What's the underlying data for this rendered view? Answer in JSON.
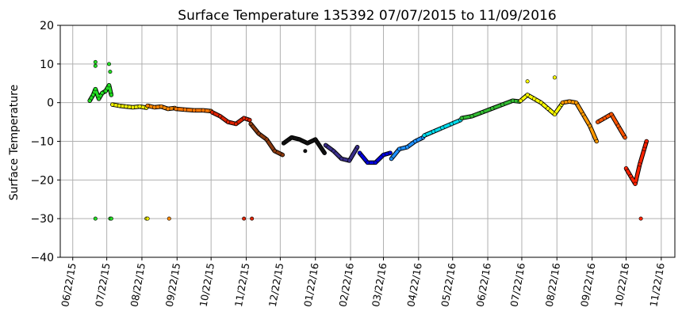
{
  "chart_data": {
    "type": "scatter",
    "title": "Surface Temperature 135392  07/07/2015 to 11/09/2016",
    "xlabel": "",
    "ylabel": "Surface Temperature",
    "ylim": [
      -40,
      20
    ],
    "yticks": [
      20,
      10,
      0,
      -10,
      -20,
      -30,
      -40
    ],
    "xlim": [
      "2015-06-11",
      "2016-12-04"
    ],
    "xticks": [
      "06/22/15",
      "07/22/15",
      "08/22/15",
      "09/22/15",
      "10/22/15",
      "11/22/15",
      "12/22/15",
      "01/22/16",
      "02/22/16",
      "03/22/16",
      "04/22/16",
      "05/22/16",
      "06/22/16",
      "07/22/16",
      "08/22/16",
      "09/22/16",
      "10/22/16",
      "11/22/16"
    ],
    "xtick_dates": [
      "2015-06-22",
      "2015-07-22",
      "2015-08-22",
      "2015-09-22",
      "2015-10-22",
      "2015-11-22",
      "2015-12-22",
      "2016-01-22",
      "2016-02-22",
      "2016-03-22",
      "2016-04-22",
      "2016-05-22",
      "2016-06-22",
      "2016-07-22",
      "2016-08-22",
      "2016-09-22",
      "2016-10-22",
      "2016-11-22"
    ],
    "grid": true,
    "series": [
      {
        "color": "#22dd22",
        "x": [
          "2015-07-07",
          "2015-07-10",
          "2015-07-12",
          "2015-07-15",
          "2015-07-18",
          "2015-07-21",
          "2015-07-24",
          "2015-07-26"
        ],
        "y": [
          0.5,
          2.0,
          3.5,
          1.0,
          2.5,
          3.0,
          4.5,
          2.0
        ]
      },
      {
        "color": "#eeee00",
        "x": [
          "2015-07-27",
          "2015-08-02",
          "2015-08-08",
          "2015-08-14",
          "2015-08-20",
          "2015-08-26"
        ],
        "y": [
          -0.5,
          -0.8,
          -1.0,
          -1.2,
          -1.0,
          -1.3
        ]
      },
      {
        "color": "#ff8800",
        "x": [
          "2015-08-27",
          "2015-09-02",
          "2015-09-08",
          "2015-09-14",
          "2015-09-20"
        ],
        "y": [
          -0.8,
          -1.2,
          -1.0,
          -1.6,
          -1.4
        ]
      },
      {
        "color": "#ff7700",
        "x": [
          "2015-09-21",
          "2015-09-29",
          "2015-10-07",
          "2015-10-15",
          "2015-10-22"
        ],
        "y": [
          -1.6,
          -1.8,
          -2.0,
          -2.0,
          -2.2
        ]
      },
      {
        "color": "#dd2200",
        "x": [
          "2015-10-23",
          "2015-10-30",
          "2015-11-06",
          "2015-11-13",
          "2015-11-20",
          "2015-11-25"
        ],
        "y": [
          -2.5,
          -3.5,
          -5.0,
          -5.5,
          -4.0,
          -4.5
        ]
      },
      {
        "color": "#8b3a0f",
        "x": [
          "2015-11-26",
          "2015-12-03",
          "2015-12-10",
          "2015-12-17",
          "2015-12-24"
        ],
        "y": [
          -5.5,
          -8.0,
          -9.5,
          -12.5,
          -13.5
        ]
      },
      {
        "color": "#111111",
        "x": [
          "2015-12-25",
          "2016-01-01",
          "2016-01-08",
          "2016-01-15",
          "2016-01-22",
          "2016-01-30"
        ],
        "y": [
          -10.5,
          -9.0,
          -9.5,
          -10.5,
          -9.5,
          -13.0
        ]
      },
      {
        "color": "#3a2e8a",
        "x": [
          "2016-01-31",
          "2016-02-07",
          "2016-02-14",
          "2016-02-21",
          "2016-02-28"
        ],
        "y": [
          -11.0,
          -12.5,
          -14.5,
          -15.0,
          -11.5
        ]
      },
      {
        "color": "#0000dd",
        "x": [
          "2016-03-01",
          "2016-03-08",
          "2016-03-15",
          "2016-03-22",
          "2016-03-28"
        ],
        "y": [
          -13.0,
          -15.5,
          -15.5,
          -13.5,
          -13.0
        ]
      },
      {
        "color": "#1e90ff",
        "x": [
          "2016-03-29",
          "2016-04-05",
          "2016-04-12",
          "2016-04-19",
          "2016-04-26"
        ],
        "y": [
          -14.5,
          -12.0,
          -11.5,
          -10.0,
          -9.0
        ]
      },
      {
        "color": "#00ddee",
        "x": [
          "2016-04-27",
          "2016-05-05",
          "2016-05-13",
          "2016-05-21",
          "2016-05-29"
        ],
        "y": [
          -8.5,
          -7.5,
          -6.5,
          -5.5,
          -4.5
        ]
      },
      {
        "color": "#33bb33",
        "x": [
          "2016-05-30",
          "2016-06-08",
          "2016-06-17",
          "2016-06-26",
          "2016-07-05",
          "2016-07-14",
          "2016-07-20"
        ],
        "y": [
          -4.0,
          -3.5,
          -2.5,
          -1.5,
          -0.5,
          0.5,
          0.3
        ]
      },
      {
        "color": "#ffff00",
        "x": [
          "2016-07-21",
          "2016-07-27",
          "2016-08-02",
          "2016-08-08",
          "2016-08-14",
          "2016-08-20",
          "2016-08-26"
        ],
        "y": [
          0.5,
          2.0,
          1.0,
          0.0,
          -1.5,
          -3.0,
          -0.5
        ]
      },
      {
        "color": "#ff9900",
        "x": [
          "2016-08-27",
          "2016-09-02",
          "2016-09-08",
          "2016-09-14",
          "2016-09-20",
          "2016-09-26"
        ],
        "y": [
          0.0,
          0.3,
          0.0,
          -3.0,
          -6.0,
          -10.0
        ]
      },
      {
        "color": "#ff5500",
        "x": [
          "2016-09-27",
          "2016-10-03",
          "2016-10-09",
          "2016-10-15",
          "2016-10-21"
        ],
        "y": [
          -5.0,
          -4.0,
          -3.0,
          -6.0,
          -9.0
        ]
      },
      {
        "color": "#ff2200",
        "x": [
          "2016-10-22",
          "2016-10-26",
          "2016-10-30",
          "2016-11-03",
          "2016-11-07",
          "2016-11-09"
        ],
        "y": [
          -17.0,
          -19.0,
          -21.0,
          -16.0,
          -12.0,
          -10.0
        ]
      }
    ],
    "outliers": [
      {
        "color": "#22dd22",
        "x": "2015-07-12",
        "y": 10.5
      },
      {
        "color": "#22dd22",
        "x": "2015-07-12",
        "y": 9.5
      },
      {
        "color": "#22dd22",
        "x": "2015-07-24",
        "y": 10.0
      },
      {
        "color": "#22dd22",
        "x": "2015-07-25",
        "y": 8.0
      },
      {
        "color": "#ffff00",
        "x": "2016-07-27",
        "y": 5.5
      },
      {
        "color": "#ffff00",
        "x": "2016-08-20",
        "y": 6.5
      },
      {
        "color": "#111111",
        "x": "2016-01-13",
        "y": -12.5
      },
      {
        "color": "#22dd22",
        "x": "2015-07-12",
        "y": -30
      },
      {
        "color": "#22dd22",
        "x": "2015-07-25",
        "y": -30
      },
      {
        "color": "#22dd22",
        "x": "2015-07-26",
        "y": -30
      },
      {
        "color": "#eeee00",
        "x": "2015-08-26",
        "y": -30
      },
      {
        "color": "#eeee00",
        "x": "2015-08-27",
        "y": -30
      },
      {
        "color": "#ff8800",
        "x": "2015-09-15",
        "y": -30
      },
      {
        "color": "#dd2200",
        "x": "2015-11-20",
        "y": -30
      },
      {
        "color": "#dd2200",
        "x": "2015-11-27",
        "y": -30
      },
      {
        "color": "#ff2200",
        "x": "2016-11-04",
        "y": -30
      }
    ]
  }
}
